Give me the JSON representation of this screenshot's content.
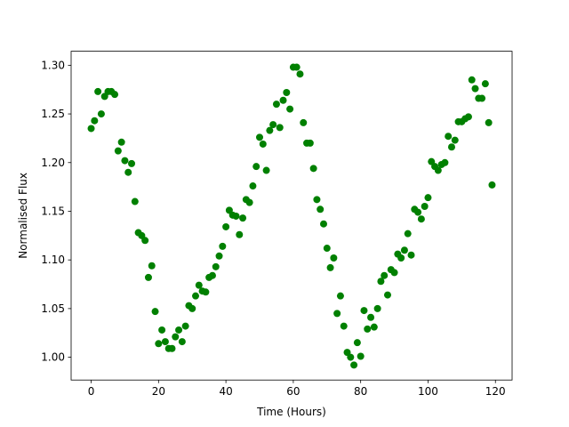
{
  "chart_data": {
    "type": "scatter",
    "xlabel": "Time (Hours)",
    "ylabel": "Normalised Flux",
    "color": "green",
    "x": [
      0,
      1,
      2,
      3,
      4,
      5,
      6,
      7,
      8,
      9,
      10,
      11,
      12,
      13,
      14,
      15,
      16,
      17,
      18,
      19,
      20,
      21,
      22,
      23,
      24,
      25,
      26,
      27,
      28,
      29,
      30,
      31,
      32,
      33,
      34,
      35,
      36,
      37,
      38,
      39,
      40,
      41,
      42,
      43,
      44,
      45,
      46,
      47,
      48,
      49,
      50,
      51,
      52,
      53,
      54,
      55,
      56,
      57,
      58,
      59,
      60,
      61,
      62,
      63,
      64,
      65,
      66,
      67,
      68,
      69,
      70,
      71,
      72,
      73,
      74,
      75,
      76,
      77,
      78,
      79,
      80,
      81,
      82,
      83,
      84,
      85,
      86,
      87,
      88,
      89,
      90,
      91,
      92,
      93,
      94,
      95,
      96,
      97,
      98,
      99,
      100,
      101,
      102,
      103,
      104,
      105,
      106,
      107,
      108,
      109,
      110,
      111,
      112,
      113,
      114,
      115,
      116,
      117,
      118,
      119
    ],
    "values": [
      1.235,
      1.243,
      1.273,
      1.25,
      1.268,
      1.273,
      1.273,
      1.27,
      1.212,
      1.221,
      1.202,
      1.19,
      1.199,
      1.16,
      1.128,
      1.125,
      1.12,
      1.082,
      1.094,
      1.047,
      1.014,
      1.028,
      1.016,
      1.009,
      1.009,
      1.021,
      1.028,
      1.016,
      1.032,
      1.053,
      1.05,
      1.063,
      1.074,
      1.068,
      1.067,
      1.082,
      1.084,
      1.093,
      1.104,
      1.114,
      1.134,
      1.151,
      1.146,
      1.145,
      1.126,
      1.143,
      1.162,
      1.159,
      1.176,
      1.196,
      1.226,
      1.219,
      1.192,
      1.233,
      1.239,
      1.26,
      1.236,
      1.264,
      1.272,
      1.255,
      1.298,
      1.298,
      1.291,
      1.241,
      1.22,
      1.22,
      1.194,
      1.162,
      1.152,
      1.137,
      1.112,
      1.092,
      1.102,
      1.045,
      1.063,
      1.032,
      1.005,
      1.0,
      0.992,
      1.015,
      1.001,
      1.048,
      1.029,
      1.041,
      1.031,
      1.05,
      1.078,
      1.084,
      1.064,
      1.09,
      1.087,
      1.106,
      1.102,
      1.11,
      1.127,
      1.105,
      1.152,
      1.149,
      1.142,
      1.155,
      1.164,
      1.201,
      1.196,
      1.192,
      1.198,
      1.2,
      1.227,
      1.216,
      1.223,
      1.242,
      1.242,
      1.245,
      1.247,
      1.285,
      1.276,
      1.266,
      1.266,
      1.281,
      1.241,
      1.177
    ],
    "xlim": [
      -5.95,
      124.95
    ],
    "ylim": [
      0.9766,
      1.3144
    ],
    "xticks": [
      0,
      20,
      40,
      60,
      80,
      100,
      120
    ],
    "yticks": [
      {
        "value": 1,
        "label": "1.00"
      },
      1.05,
      {
        "value": 1.1,
        "label": "1.10"
      },
      1.15,
      {
        "value": 1.2,
        "label": "1.20"
      },
      1.25,
      {
        "value": 1.3,
        "label": "1.30"
      }
    ]
  }
}
